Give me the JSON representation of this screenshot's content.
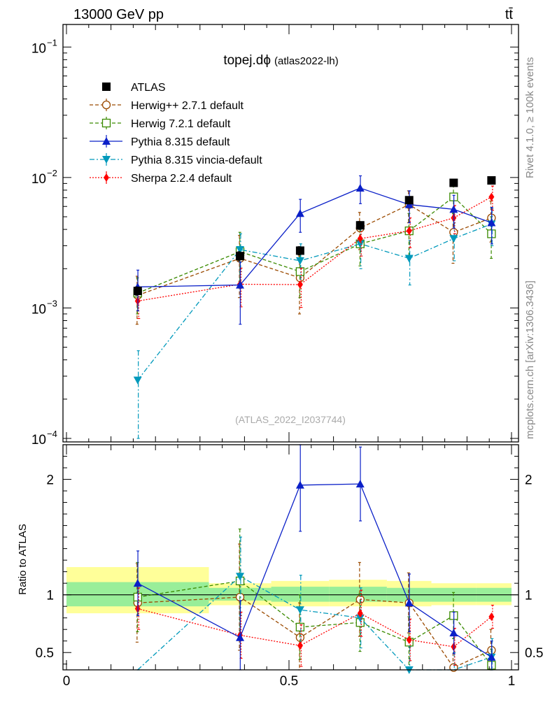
{
  "header": {
    "energy_label": "13000 GeV pp",
    "process_label": "tt̄"
  },
  "side_labels": {
    "rivet": "Rivet 4.1.0, ≥ 100k events",
    "mcplots": "mcplots.cern.ch [arXiv:1306.3436]"
  },
  "chart_data": {
    "type": "line",
    "title": "topej.dϕ",
    "subtitle": "(atlas2022-lh)",
    "watermark": "(ATLAS_2022_I2037744)",
    "xlabel": "",
    "ylabel_main": "",
    "ylabel_ratio": "Ratio to ATLAS",
    "xlim": [
      0,
      1
    ],
    "ylim_main": [
      0.0001,
      0.14
    ],
    "ylim_ratio": [
      0.35,
      2.3
    ],
    "yscale_main": "log",
    "main_tick_labels": [
      {
        "value": 0.1,
        "mant": "10",
        "exp": "−1"
      },
      {
        "value": 0.01,
        "mant": "10",
        "exp": "−2"
      },
      {
        "value": 0.001,
        "mant": "10",
        "exp": "−3"
      },
      {
        "value": 0.0001,
        "mant": "10",
        "exp": "−4"
      }
    ],
    "ratio_tick_labels": [
      {
        "value": 2,
        "label": "2"
      },
      {
        "value": 1,
        "label": "1"
      },
      {
        "value": 0.5,
        "label": "0.5"
      }
    ],
    "x_tick_labels": [
      {
        "value": 0,
        "label": "0"
      },
      {
        "value": 0.5,
        "label": "0.5"
      },
      {
        "value": 1,
        "label": "1"
      }
    ],
    "x": [
      0.16,
      0.39,
      0.525,
      0.66,
      0.77,
      0.87,
      0.955
    ],
    "bin_edges": [
      0,
      0.32,
      0.46,
      0.59,
      0.72,
      0.82,
      0.92,
      1.0
    ],
    "ratio_bands": {
      "edges": [
        0,
        0.32,
        0.46,
        0.59,
        0.72,
        0.82,
        0.92,
        1.0
      ],
      "green": [
        [
          0.9,
          1.11
        ],
        [
          0.95,
          1.06
        ],
        [
          0.94,
          1.07
        ],
        [
          0.94,
          1.07
        ],
        [
          0.94,
          1.06
        ],
        [
          0.94,
          1.06
        ],
        [
          0.94,
          1.06
        ]
      ],
      "yellow": [
        [
          0.84,
          1.24
        ],
        [
          0.91,
          1.1
        ],
        [
          0.9,
          1.12
        ],
        [
          0.9,
          1.13
        ],
        [
          0.9,
          1.12
        ],
        [
          0.91,
          1.1
        ],
        [
          0.91,
          1.1
        ]
      ]
    },
    "series": [
      {
        "name": "ATLAS",
        "color": "#000000",
        "marker": "square-filled",
        "line": "none",
        "values": [
          0.00135,
          0.0025,
          0.00275,
          0.0043,
          0.0067,
          0.0091,
          0.0095
        ],
        "err": [
          0.0001,
          0.0002,
          0.0002,
          0.0003,
          0.0004,
          0.0005,
          0.0005
        ],
        "ratio": [
          1,
          1,
          1,
          1,
          1,
          1,
          1
        ],
        "ratio_err": [
          0,
          0,
          0,
          0,
          0,
          0,
          0
        ]
      },
      {
        "name": "Herwig++ 2.7.1 default",
        "color": "#9b4a00",
        "marker": "circle-open",
        "line": "dashed",
        "values": [
          0.00125,
          0.0024,
          0.0017,
          0.0041,
          0.0062,
          0.0038,
          0.0049
        ],
        "err": [
          0.0005,
          0.0012,
          0.0008,
          0.0013,
          0.0017,
          0.0016,
          0.0017
        ],
        "ratio": [
          0.93,
          0.98,
          0.63,
          0.96,
          0.93,
          0.37,
          0.52
        ],
        "ratio_err": [
          0.34,
          0.46,
          0.3,
          0.32,
          0.26,
          0.18,
          0.18
        ]
      },
      {
        "name": "Herwig 7.2.1 default",
        "color": "#3a8a00",
        "marker": "square-open",
        "line": "dashed",
        "values": [
          0.0013,
          0.0027,
          0.0019,
          0.0031,
          0.0039,
          0.0071,
          0.0037
        ],
        "err": [
          0.0004,
          0.0011,
          0.0007,
          0.001,
          0.0014,
          0.0018,
          0.0013
        ],
        "ratio": [
          0.98,
          1.12,
          0.72,
          0.76,
          0.59,
          0.82,
          0.39
        ],
        "ratio_err": [
          0.3,
          0.45,
          0.28,
          0.25,
          0.22,
          0.2,
          0.14
        ]
      },
      {
        "name": "Pythia 8.315 default",
        "color": "#0b20c8",
        "marker": "triangle-up-filled",
        "line": "solid",
        "values": [
          0.00145,
          0.0015,
          0.0053,
          0.0083,
          0.0062,
          0.0057,
          0.0045
        ],
        "err": [
          0.0005,
          0.00075,
          0.0015,
          0.002,
          0.0017,
          0.0016,
          0.0014
        ],
        "ratio": [
          1.1,
          0.63,
          1.95,
          1.96,
          0.93,
          0.67,
          0.46
        ],
        "ratio_err": [
          0.28,
          0.32,
          0.4,
          0.32,
          0.25,
          0.18,
          0.14
        ]
      },
      {
        "name": "Pythia 8.315 vincia-default",
        "color": "#0099bb",
        "marker": "triangle-down-filled",
        "line": "dashdot",
        "values": [
          0.00028,
          0.0028,
          0.0023,
          0.0031,
          0.0024,
          0.0034,
          0.0044
        ],
        "err": [
          0.00019,
          0.0009,
          0.0008,
          0.0011,
          0.0009,
          0.0011,
          0.0014
        ],
        "ratio": [
          0.2,
          1.16,
          0.87,
          0.8,
          0.35,
          0.34,
          0.46
        ],
        "ratio_err": [
          0.14,
          0.34,
          0.3,
          0.26,
          0.2,
          0.16,
          0.16
        ]
      },
      {
        "name": "Sherpa 2.2.4 default",
        "color": "#ff0000",
        "marker": "diamond-filled",
        "line": "dotted",
        "values": [
          0.00113,
          0.00152,
          0.00151,
          0.0034,
          0.0039,
          0.0049,
          0.0071
        ],
        "err": [
          0.0003,
          0.0005,
          0.0005,
          0.0009,
          0.001,
          0.0012,
          0.0015
        ],
        "ratio": [
          0.88,
          0.65,
          0.56,
          0.84,
          0.61,
          0.55,
          0.81
        ],
        "ratio_err": [
          0.18,
          0.2,
          0.18,
          0.2,
          0.18,
          0.16,
          0.1
        ]
      }
    ]
  }
}
